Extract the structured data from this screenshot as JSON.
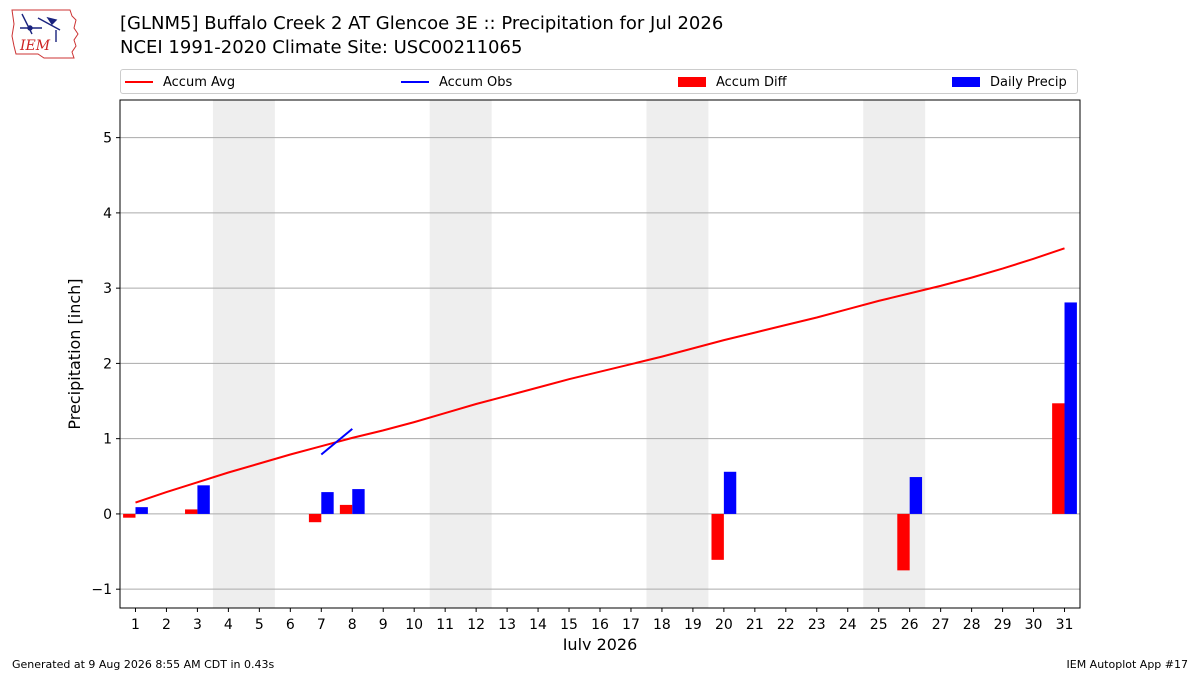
{
  "logo": {
    "name": "iem-logo",
    "text": "IEM"
  },
  "header": {
    "title": "[GLNM5] Buffalo Creek 2 AT Glencoe 3E :: Precipitation for Jul 2026",
    "subtitle": "NCEI 1991-2020 Climate Site: USC00211065"
  },
  "legend": {
    "placement": "top",
    "items": [
      {
        "label": "Accum Avg",
        "kind": "line",
        "color": "#ff0000"
      },
      {
        "label": "Accum Obs",
        "kind": "line",
        "color": "#0000ff"
      },
      {
        "label": "Accum Diff",
        "kind": "bar",
        "color": "#ff0000"
      },
      {
        "label": "Daily Precip",
        "kind": "bar",
        "color": "#0000ff"
      }
    ]
  },
  "chart_data": {
    "type": "bar",
    "xlabel": "July 2026",
    "ylabel": "Precipitation [inch]",
    "ylim": [
      -1.25,
      5.5
    ],
    "yticks": [
      -1,
      0,
      1,
      2,
      3,
      4,
      5
    ],
    "grid": "horizontal",
    "x": [
      1,
      2,
      3,
      4,
      5,
      6,
      7,
      8,
      9,
      10,
      11,
      12,
      13,
      14,
      15,
      16,
      17,
      18,
      19,
      20,
      21,
      22,
      23,
      24,
      25,
      26,
      27,
      28,
      29,
      30,
      31
    ],
    "weekend_day_ranges": [
      [
        4,
        5
      ],
      [
        11,
        12
      ],
      [
        18,
        19
      ],
      [
        25,
        26
      ]
    ],
    "series": [
      {
        "name": "Accum Avg",
        "kind": "line",
        "color": "#ff0000",
        "values": [
          0.15,
          0.29,
          0.42,
          0.55,
          0.67,
          0.79,
          0.9,
          1.01,
          1.11,
          1.22,
          1.34,
          1.46,
          1.57,
          1.68,
          1.79,
          1.89,
          1.99,
          2.09,
          2.2,
          2.31,
          2.41,
          2.51,
          2.61,
          2.72,
          2.83,
          2.93,
          3.03,
          3.14,
          3.26,
          3.39,
          3.53
        ]
      },
      {
        "name": "Accum Obs",
        "kind": "line",
        "color": "#0000ff",
        "values": [
          null,
          null,
          null,
          null,
          null,
          null,
          0.79,
          1.13,
          null,
          null,
          null,
          null,
          null,
          null,
          null,
          null,
          null,
          null,
          null,
          null,
          null,
          null,
          null,
          null,
          null,
          null,
          null,
          null,
          null,
          null,
          null
        ]
      },
      {
        "name": "Accum Diff",
        "kind": "bar",
        "color": "#ff0000",
        "values": [
          -0.05,
          0,
          0.06,
          0,
          0,
          0,
          -0.11,
          0.12,
          0,
          0,
          0,
          0,
          0,
          0,
          0,
          0,
          0,
          0,
          0,
          -0.61,
          0,
          0,
          0,
          0,
          0,
          -0.75,
          0,
          0,
          0,
          0,
          1.47
        ]
      },
      {
        "name": "Daily Precip",
        "kind": "bar",
        "color": "#0000ff",
        "values": [
          0.09,
          0,
          0.38,
          0,
          0,
          0,
          0.29,
          0.33,
          0,
          0,
          0,
          0,
          0,
          0,
          0,
          0,
          0,
          0,
          0,
          0.56,
          0,
          0,
          0,
          0,
          0,
          0.49,
          0,
          0,
          0,
          0,
          2.81
        ]
      }
    ]
  },
  "footer": {
    "left": "Generated at 9 Aug 2026 8:55 AM CDT in 0.43s",
    "right": "IEM Autoplot App #17"
  }
}
